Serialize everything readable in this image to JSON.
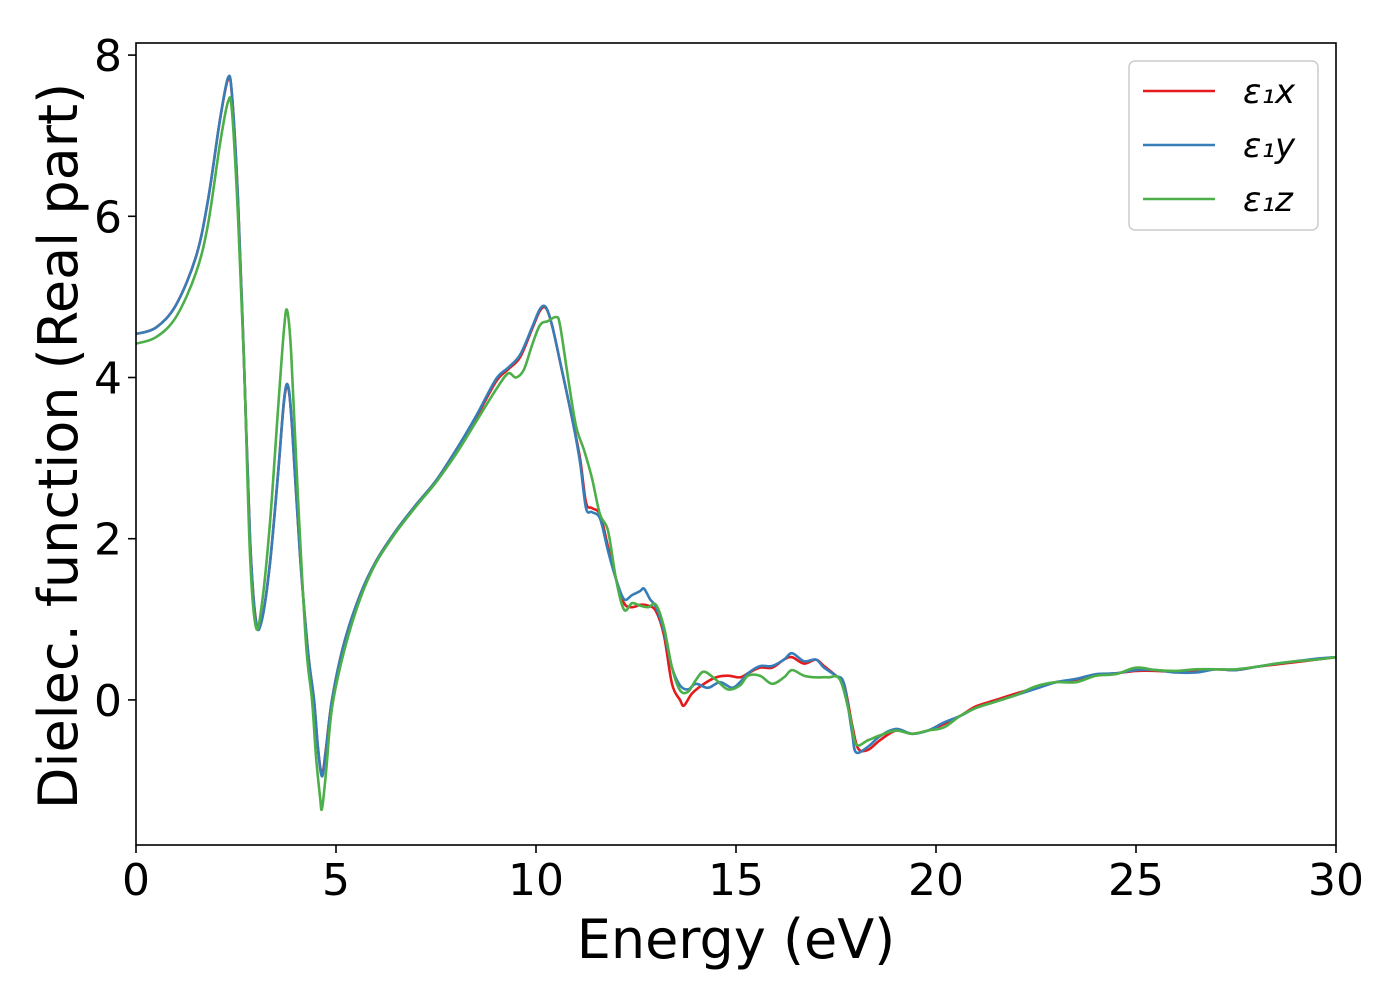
{
  "chart_data": {
    "type": "line",
    "title": "",
    "xlabel": "Energy (eV)",
    "ylabel": "Dielec. function (Real part)",
    "xlim": [
      0,
      30
    ],
    "ylim": [
      -1.8,
      8.15
    ],
    "xticks": [
      0,
      5,
      10,
      15,
      20,
      25,
      30
    ],
    "yticks": [
      0,
      2,
      4,
      6,
      8
    ],
    "grid": false,
    "legend": "top-right",
    "series": [
      {
        "name": "ε₁x",
        "color": "#e41a1c",
        "points": [
          [
            0.0,
            4.54
          ],
          [
            0.5,
            4.62
          ],
          [
            1.0,
            4.9
          ],
          [
            1.5,
            5.5
          ],
          [
            1.8,
            6.2
          ],
          [
            2.1,
            7.2
          ],
          [
            2.3,
            7.7
          ],
          [
            2.4,
            7.5
          ],
          [
            2.55,
            6.2
          ],
          [
            2.7,
            4.2
          ],
          [
            2.85,
            2.0
          ],
          [
            3.0,
            0.98
          ],
          [
            3.15,
            1.0
          ],
          [
            3.35,
            1.7
          ],
          [
            3.55,
            2.8
          ],
          [
            3.7,
            3.7
          ],
          [
            3.8,
            3.88
          ],
          [
            3.9,
            3.4
          ],
          [
            4.1,
            1.8
          ],
          [
            4.3,
            0.6
          ],
          [
            4.45,
            0.0
          ],
          [
            4.55,
            -0.6
          ],
          [
            4.65,
            -0.92
          ],
          [
            4.75,
            -0.6
          ],
          [
            4.9,
            0.0
          ],
          [
            5.2,
            0.7
          ],
          [
            5.6,
            1.3
          ],
          [
            6.0,
            1.72
          ],
          [
            6.5,
            2.1
          ],
          [
            7.0,
            2.42
          ],
          [
            7.5,
            2.72
          ],
          [
            8.0,
            3.1
          ],
          [
            8.5,
            3.5
          ],
          [
            9.0,
            3.95
          ],
          [
            9.3,
            4.1
          ],
          [
            9.6,
            4.25
          ],
          [
            9.9,
            4.6
          ],
          [
            10.1,
            4.83
          ],
          [
            10.25,
            4.86
          ],
          [
            10.4,
            4.65
          ],
          [
            10.6,
            4.2
          ],
          [
            10.9,
            3.5
          ],
          [
            11.1,
            3.0
          ],
          [
            11.25,
            2.45
          ],
          [
            11.4,
            2.38
          ],
          [
            11.6,
            2.3
          ],
          [
            11.8,
            1.9
          ],
          [
            12.0,
            1.5
          ],
          [
            12.2,
            1.2
          ],
          [
            12.4,
            1.15
          ],
          [
            12.6,
            1.18
          ],
          [
            12.8,
            1.17
          ],
          [
            13.0,
            1.1
          ],
          [
            13.2,
            0.8
          ],
          [
            13.4,
            0.2
          ],
          [
            13.6,
            0.0
          ],
          [
            13.7,
            -0.07
          ],
          [
            13.9,
            0.08
          ],
          [
            14.2,
            0.2
          ],
          [
            14.5,
            0.28
          ],
          [
            14.8,
            0.3
          ],
          [
            15.1,
            0.28
          ],
          [
            15.3,
            0.33
          ],
          [
            15.6,
            0.4
          ],
          [
            15.9,
            0.4
          ],
          [
            16.2,
            0.5
          ],
          [
            16.4,
            0.53
          ],
          [
            16.7,
            0.45
          ],
          [
            17.0,
            0.5
          ],
          [
            17.2,
            0.42
          ],
          [
            17.5,
            0.3
          ],
          [
            17.7,
            0.2
          ],
          [
            17.9,
            -0.3
          ],
          [
            18.05,
            -0.6
          ],
          [
            18.3,
            -0.62
          ],
          [
            18.6,
            -0.5
          ],
          [
            19.0,
            -0.38
          ],
          [
            19.4,
            -0.42
          ],
          [
            19.8,
            -0.38
          ],
          [
            20.2,
            -0.3
          ],
          [
            20.6,
            -0.2
          ],
          [
            21.0,
            -0.08
          ],
          [
            21.5,
            0.0
          ],
          [
            22.0,
            0.08
          ],
          [
            22.5,
            0.15
          ],
          [
            23.0,
            0.22
          ],
          [
            23.5,
            0.25
          ],
          [
            24.0,
            0.31
          ],
          [
            24.5,
            0.33
          ],
          [
            25.0,
            0.36
          ],
          [
            25.5,
            0.36
          ],
          [
            26.0,
            0.35
          ],
          [
            26.5,
            0.36
          ],
          [
            27.0,
            0.38
          ],
          [
            27.5,
            0.37
          ],
          [
            28.0,
            0.41
          ],
          [
            28.5,
            0.44
          ],
          [
            29.0,
            0.47
          ],
          [
            29.5,
            0.5
          ],
          [
            30.0,
            0.53
          ]
        ]
      },
      {
        "name": "ε₁y",
        "color": "#377eb8",
        "points": [
          [
            0.0,
            4.54
          ],
          [
            0.5,
            4.62
          ],
          [
            1.0,
            4.9
          ],
          [
            1.5,
            5.5
          ],
          [
            1.8,
            6.2
          ],
          [
            2.1,
            7.2
          ],
          [
            2.3,
            7.72
          ],
          [
            2.4,
            7.5
          ],
          [
            2.55,
            6.2
          ],
          [
            2.7,
            4.2
          ],
          [
            2.85,
            2.0
          ],
          [
            3.0,
            0.96
          ],
          [
            3.15,
            1.0
          ],
          [
            3.35,
            1.7
          ],
          [
            3.55,
            2.8
          ],
          [
            3.7,
            3.72
          ],
          [
            3.8,
            3.9
          ],
          [
            3.9,
            3.4
          ],
          [
            4.1,
            1.8
          ],
          [
            4.3,
            0.6
          ],
          [
            4.45,
            0.0
          ],
          [
            4.55,
            -0.6
          ],
          [
            4.65,
            -0.95
          ],
          [
            4.75,
            -0.62
          ],
          [
            4.9,
            0.0
          ],
          [
            5.2,
            0.7
          ],
          [
            5.6,
            1.3
          ],
          [
            6.0,
            1.72
          ],
          [
            6.5,
            2.1
          ],
          [
            7.0,
            2.42
          ],
          [
            7.5,
            2.72
          ],
          [
            8.0,
            3.1
          ],
          [
            8.5,
            3.52
          ],
          [
            9.0,
            3.98
          ],
          [
            9.3,
            4.12
          ],
          [
            9.6,
            4.28
          ],
          [
            9.9,
            4.62
          ],
          [
            10.1,
            4.85
          ],
          [
            10.25,
            4.87
          ],
          [
            10.4,
            4.65
          ],
          [
            10.6,
            4.2
          ],
          [
            10.9,
            3.5
          ],
          [
            11.1,
            2.95
          ],
          [
            11.25,
            2.38
          ],
          [
            11.4,
            2.33
          ],
          [
            11.6,
            2.25
          ],
          [
            11.8,
            1.85
          ],
          [
            12.0,
            1.5
          ],
          [
            12.2,
            1.25
          ],
          [
            12.4,
            1.3
          ],
          [
            12.6,
            1.35
          ],
          [
            12.7,
            1.38
          ],
          [
            12.85,
            1.25
          ],
          [
            13.0,
            1.15
          ],
          [
            13.2,
            0.85
          ],
          [
            13.4,
            0.4
          ],
          [
            13.6,
            0.18
          ],
          [
            13.8,
            0.13
          ],
          [
            14.0,
            0.2
          ],
          [
            14.3,
            0.15
          ],
          [
            14.6,
            0.22
          ],
          [
            14.9,
            0.15
          ],
          [
            15.1,
            0.22
          ],
          [
            15.3,
            0.33
          ],
          [
            15.6,
            0.42
          ],
          [
            15.9,
            0.42
          ],
          [
            16.2,
            0.5
          ],
          [
            16.4,
            0.58
          ],
          [
            16.7,
            0.48
          ],
          [
            17.0,
            0.5
          ],
          [
            17.2,
            0.4
          ],
          [
            17.5,
            0.3
          ],
          [
            17.7,
            0.2
          ],
          [
            17.9,
            -0.4
          ],
          [
            18.0,
            -0.65
          ],
          [
            18.3,
            -0.58
          ],
          [
            18.6,
            -0.45
          ],
          [
            19.0,
            -0.36
          ],
          [
            19.4,
            -0.42
          ],
          [
            19.8,
            -0.38
          ],
          [
            20.2,
            -0.28
          ],
          [
            20.6,
            -0.2
          ],
          [
            21.0,
            -0.1
          ],
          [
            21.5,
            -0.02
          ],
          [
            22.0,
            0.06
          ],
          [
            22.5,
            0.14
          ],
          [
            23.0,
            0.22
          ],
          [
            23.5,
            0.26
          ],
          [
            24.0,
            0.32
          ],
          [
            24.5,
            0.33
          ],
          [
            25.0,
            0.37
          ],
          [
            25.5,
            0.37
          ],
          [
            26.0,
            0.34
          ],
          [
            26.5,
            0.34
          ],
          [
            27.0,
            0.38
          ],
          [
            27.5,
            0.37
          ],
          [
            28.0,
            0.41
          ],
          [
            28.5,
            0.45
          ],
          [
            29.0,
            0.48
          ],
          [
            29.5,
            0.51
          ],
          [
            30.0,
            0.53
          ]
        ]
      },
      {
        "name": "ε₁z",
        "color": "#4daf4a",
        "points": [
          [
            0.0,
            4.42
          ],
          [
            0.5,
            4.5
          ],
          [
            1.0,
            4.75
          ],
          [
            1.5,
            5.3
          ],
          [
            1.8,
            5.9
          ],
          [
            2.1,
            6.9
          ],
          [
            2.3,
            7.42
          ],
          [
            2.4,
            7.3
          ],
          [
            2.55,
            6.0
          ],
          [
            2.7,
            4.2
          ],
          [
            2.85,
            1.8
          ],
          [
            3.0,
            0.9
          ],
          [
            3.15,
            1.2
          ],
          [
            3.35,
            2.2
          ],
          [
            3.55,
            3.6
          ],
          [
            3.7,
            4.6
          ],
          [
            3.78,
            4.83
          ],
          [
            3.88,
            4.3
          ],
          [
            4.05,
            2.5
          ],
          [
            4.25,
            0.7
          ],
          [
            4.4,
            0.0
          ],
          [
            4.5,
            -0.7
          ],
          [
            4.6,
            -1.2
          ],
          [
            4.65,
            -1.35
          ],
          [
            4.75,
            -0.9
          ],
          [
            4.9,
            -0.1
          ],
          [
            5.2,
            0.6
          ],
          [
            5.6,
            1.25
          ],
          [
            6.0,
            1.7
          ],
          [
            6.5,
            2.08
          ],
          [
            7.0,
            2.4
          ],
          [
            7.5,
            2.7
          ],
          [
            8.0,
            3.05
          ],
          [
            8.5,
            3.45
          ],
          [
            9.0,
            3.85
          ],
          [
            9.3,
            4.05
          ],
          [
            9.5,
            4.0
          ],
          [
            9.7,
            4.1
          ],
          [
            9.9,
            4.4
          ],
          [
            10.1,
            4.65
          ],
          [
            10.3,
            4.7
          ],
          [
            10.5,
            4.75
          ],
          [
            10.6,
            4.65
          ],
          [
            10.8,
            4.0
          ],
          [
            11.0,
            3.4
          ],
          [
            11.2,
            3.1
          ],
          [
            11.4,
            2.75
          ],
          [
            11.6,
            2.3
          ],
          [
            11.8,
            2.1
          ],
          [
            12.0,
            1.5
          ],
          [
            12.2,
            1.12
          ],
          [
            12.4,
            1.2
          ],
          [
            12.6,
            1.17
          ],
          [
            12.8,
            1.15
          ],
          [
            13.0,
            1.18
          ],
          [
            13.2,
            0.9
          ],
          [
            13.4,
            0.4
          ],
          [
            13.6,
            0.12
          ],
          [
            13.8,
            0.1
          ],
          [
            14.0,
            0.25
          ],
          [
            14.2,
            0.35
          ],
          [
            14.5,
            0.25
          ],
          [
            14.8,
            0.13
          ],
          [
            15.1,
            0.18
          ],
          [
            15.3,
            0.3
          ],
          [
            15.6,
            0.3
          ],
          [
            15.9,
            0.2
          ],
          [
            16.2,
            0.28
          ],
          [
            16.4,
            0.37
          ],
          [
            16.7,
            0.3
          ],
          [
            17.0,
            0.28
          ],
          [
            17.3,
            0.28
          ],
          [
            17.6,
            0.25
          ],
          [
            17.85,
            -0.2
          ],
          [
            18.0,
            -0.55
          ],
          [
            18.3,
            -0.5
          ],
          [
            18.6,
            -0.44
          ],
          [
            19.0,
            -0.38
          ],
          [
            19.4,
            -0.42
          ],
          [
            19.8,
            -0.38
          ],
          [
            20.2,
            -0.34
          ],
          [
            20.6,
            -0.2
          ],
          [
            21.0,
            -0.1
          ],
          [
            21.5,
            -0.02
          ],
          [
            22.0,
            0.06
          ],
          [
            22.5,
            0.17
          ],
          [
            23.0,
            0.22
          ],
          [
            23.5,
            0.22
          ],
          [
            24.0,
            0.3
          ],
          [
            24.5,
            0.32
          ],
          [
            25.0,
            0.4
          ],
          [
            25.5,
            0.37
          ],
          [
            26.0,
            0.36
          ],
          [
            26.5,
            0.38
          ],
          [
            27.0,
            0.38
          ],
          [
            27.5,
            0.38
          ],
          [
            28.0,
            0.41
          ],
          [
            28.5,
            0.45
          ],
          [
            29.0,
            0.48
          ],
          [
            29.5,
            0.5
          ],
          [
            30.0,
            0.53
          ]
        ]
      }
    ]
  }
}
